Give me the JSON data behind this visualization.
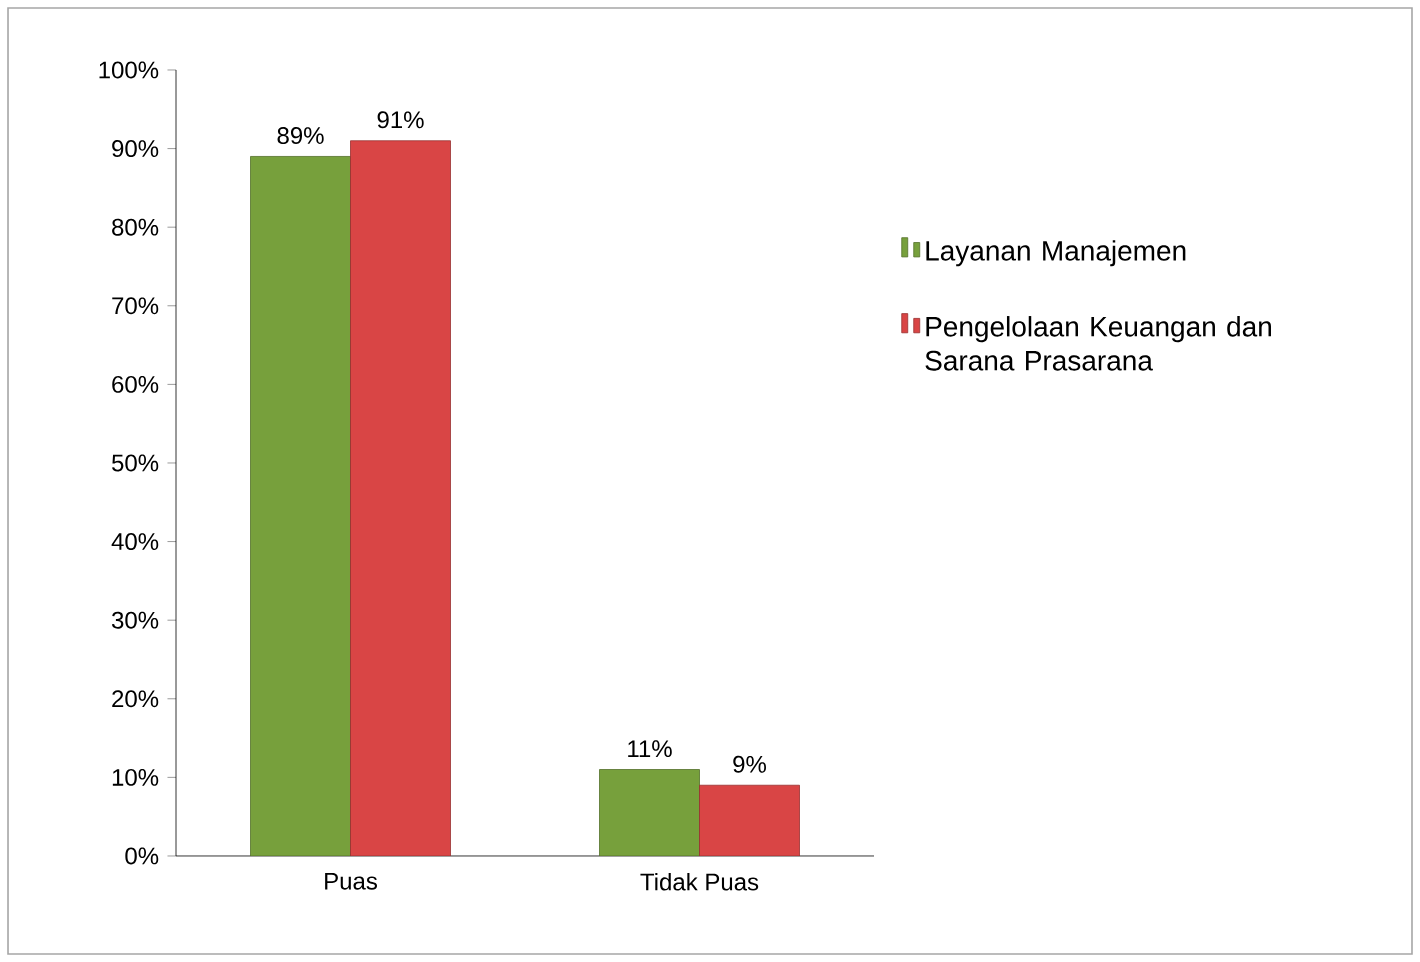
{
  "chart_data": {
    "type": "bar",
    "categories": [
      "Puas",
      "Tidak Puas"
    ],
    "series": [
      {
        "name": "Layanan Manajemen",
        "color": "#77a03c",
        "values": [
          89,
          11
        ],
        "value_labels": [
          "89%",
          "11%"
        ]
      },
      {
        "name": "Pengelolaan Keuangan dan Sarana Prasarana",
        "color": "#d94545",
        "values": [
          91,
          9
        ],
        "value_labels": [
          "91%",
          "9%"
        ]
      }
    ],
    "ylim": [
      0,
      100
    ],
    "yticks": [
      {
        "value": 0,
        "label": "0%"
      },
      {
        "value": 10,
        "label": "10%"
      },
      {
        "value": 20,
        "label": "20%"
      },
      {
        "value": 30,
        "label": "30%"
      },
      {
        "value": 40,
        "label": "40%"
      },
      {
        "value": 50,
        "label": "50%"
      },
      {
        "value": 60,
        "label": "60%"
      },
      {
        "value": 70,
        "label": "70%"
      },
      {
        "value": 80,
        "label": "80%"
      },
      {
        "value": 90,
        "label": "90%"
      },
      {
        "value": 100,
        "label": "100%"
      }
    ],
    "legend": "right",
    "grid": false
  }
}
